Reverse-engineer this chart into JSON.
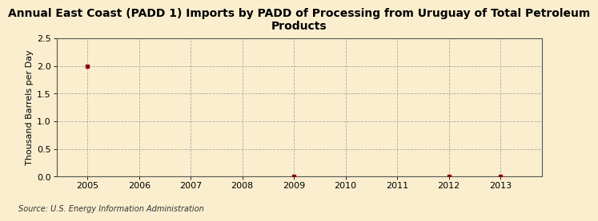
{
  "title": "Annual East Coast (PADD 1) Imports by PADD of Processing from Uruguay of Total Petroleum\nProducts",
  "ylabel": "Thousand Barrels per Day",
  "source": "Source: U.S. Energy Information Administration",
  "x_years": [
    2005,
    2006,
    2007,
    2008,
    2009,
    2010,
    2011,
    2012,
    2013
  ],
  "data_x": [
    2005,
    2009,
    2012,
    2013
  ],
  "data_y": [
    2.0,
    0.0,
    0.0,
    0.0
  ],
  "ylim": [
    0.0,
    2.5
  ],
  "yticks": [
    0.0,
    0.5,
    1.0,
    1.5,
    2.0,
    2.5
  ],
  "background_color": "#faeece",
  "plot_bg_color": "#faeece",
  "grid_color": "#aaaaaa",
  "marker_color": "#8b0000",
  "title_fontsize": 10,
  "axis_fontsize": 8,
  "ylabel_fontsize": 8,
  "source_fontsize": 7
}
